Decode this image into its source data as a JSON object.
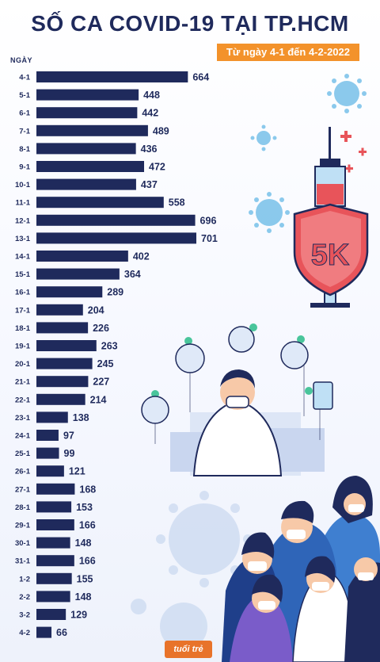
{
  "header": {
    "title": "SỐ CA COVID-19 TẠI TP.HCM",
    "subtitle": "Từ ngày 4-1 đến 4-2-2022",
    "axis_label": "NGÀY"
  },
  "logo": {
    "text": "tuổi trẻ"
  },
  "colors": {
    "bar": "#1f2a5c",
    "accent": "#f3922b",
    "text": "#1f2a5c"
  },
  "chart_data": {
    "type": "bar",
    "orientation": "horizontal",
    "title": "SỐ CA COVID-19 TẠI TP.HCM",
    "subtitle": "Từ ngày 4-1 đến 4-2-2022",
    "ylabel": "NGÀY",
    "xlabel": "",
    "categories": [
      "4-1",
      "5-1",
      "6-1",
      "7-1",
      "8-1",
      "9-1",
      "10-1",
      "11-1",
      "12-1",
      "13-1",
      "14-1",
      "15-1",
      "16-1",
      "17-1",
      "18-1",
      "19-1",
      "20-1",
      "21-1",
      "22-1",
      "23-1",
      "24-1",
      "25-1",
      "26-1",
      "27-1",
      "28-1",
      "29-1",
      "30-1",
      "31-1",
      "1-2",
      "2-2",
      "3-2",
      "4-2"
    ],
    "values": [
      664,
      448,
      442,
      489,
      436,
      472,
      437,
      558,
      696,
      701,
      402,
      364,
      289,
      204,
      226,
      263,
      245,
      227,
      214,
      138,
      97,
      99,
      121,
      168,
      153,
      166,
      148,
      166,
      155,
      148,
      129,
      66
    ],
    "xlim": [
      0,
      701
    ],
    "grid": false,
    "legend": "none",
    "data_labels": true
  }
}
